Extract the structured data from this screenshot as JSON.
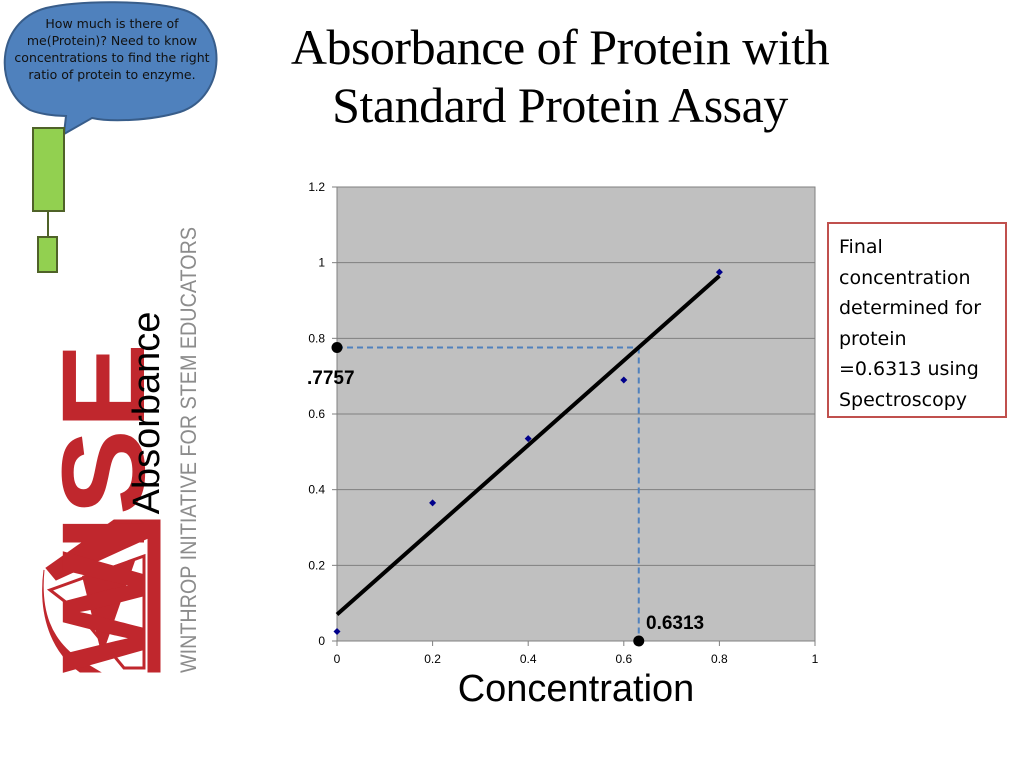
{
  "slide": {
    "title_line1": "Absorbance of Protein with",
    "title_line2": "Standard Protein Assay"
  },
  "bubble": {
    "text": "How much is there of me(Protein)? Need to know concentrations to find the right ratio of protein to enzyme.",
    "fill": "#4f81bd",
    "block_fill": "#92d050"
  },
  "logo": {
    "wordmark": "WISE",
    "tagline": "WINTHROP INITIATIVE FOR STEM EDUCATORS",
    "brand_color": "#c0272d",
    "tagline_color": "#8c8c8c"
  },
  "info_box": {
    "lines": [
      "Final",
      "concentration",
      "determined for",
      "protein",
      "=0.6313 using",
      "Spectroscopy"
    ],
    "border_color": "#c0504d"
  },
  "chart_data": {
    "type": "scatter",
    "xlabel": "Concentration",
    "ylabel": "Absorbance",
    "xlim": [
      0,
      1
    ],
    "ylim": [
      0,
      1.2
    ],
    "x_ticks": [
      "0",
      "0.2",
      "0.4",
      "0.6",
      "0.8",
      "1"
    ],
    "y_ticks": [
      "0",
      "0.2",
      "0.4",
      "0.6",
      "0.8",
      "1",
      "1.2"
    ],
    "grid": true,
    "plot_background": "#c0c0c0",
    "series": [
      {
        "points": [
          {
            "x": 0,
            "y": 0.025
          },
          {
            "x": 0.2,
            "y": 0.365
          },
          {
            "x": 0.4,
            "y": 0.535
          },
          {
            "x": 0.6,
            "y": 0.69
          },
          {
            "x": 0.8,
            "y": 0.975
          }
        ],
        "color": "#00008b"
      }
    ],
    "trendline": {
      "x1": 0,
      "y1": 0.07,
      "x2": 0.8,
      "y2": 0.965,
      "color": "#000000"
    },
    "guide_point": {
      "x": 0.6313,
      "y": 0.7757,
      "color": "#4f81bd"
    },
    "annotations": {
      "y_value_label": ".7757",
      "x_value_label": "0.6313"
    }
  }
}
